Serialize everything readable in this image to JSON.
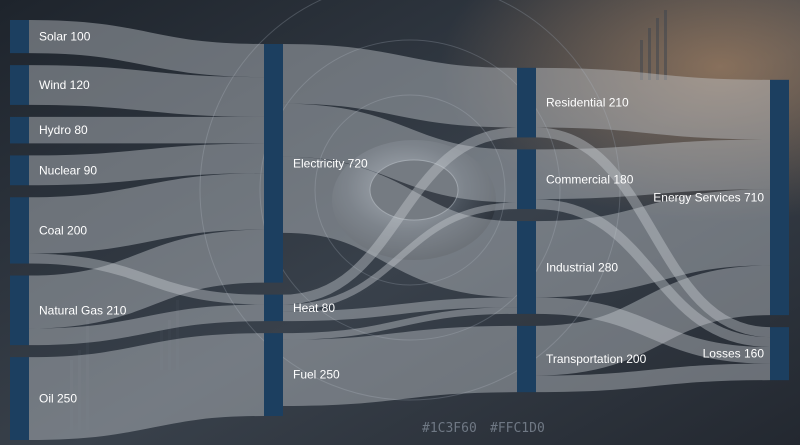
{
  "chart_data": {
    "type": "sankey",
    "columns": [
      [
        "Solar",
        "Wind",
        "Hydro",
        "Nuclear",
        "Coal",
        "Natural Gas",
        "Oil"
      ],
      [
        "Electricity",
        "Heat",
        "Fuel"
      ],
      [
        "Residential",
        "Commercial",
        "Industrial",
        "Transportation"
      ],
      [
        "Energy Services",
        "Losses"
      ]
    ],
    "nodes": [
      {
        "name": "Solar",
        "value": 100,
        "label": "Solar 100"
      },
      {
        "name": "Wind",
        "value": 120,
        "label": "Wind 120"
      },
      {
        "name": "Hydro",
        "value": 80,
        "label": "Hydro 80"
      },
      {
        "name": "Nuclear",
        "value": 90,
        "label": "Nuclear 90"
      },
      {
        "name": "Coal",
        "value": 200,
        "label": "Coal 200"
      },
      {
        "name": "Natural Gas",
        "value": 210,
        "label": "Natural Gas 210"
      },
      {
        "name": "Oil",
        "value": 250,
        "label": "Oil 250"
      },
      {
        "name": "Electricity",
        "value": 720,
        "label": "Electricity 720"
      },
      {
        "name": "Heat",
        "value": 80,
        "label": "Heat 80"
      },
      {
        "name": "Fuel",
        "value": 250,
        "label": "Fuel 250"
      },
      {
        "name": "Residential",
        "value": 210,
        "label": "Residential 210"
      },
      {
        "name": "Commercial",
        "value": 180,
        "label": "Commercial 180"
      },
      {
        "name": "Industrial",
        "value": 280,
        "label": "Industrial 280"
      },
      {
        "name": "Transportation",
        "value": 200,
        "label": "Transportation 200"
      },
      {
        "name": "Energy Services",
        "value": 710,
        "label": "Energy Services 710"
      },
      {
        "name": "Losses",
        "value": 160,
        "label": "Losses 160"
      }
    ],
    "links": [
      {
        "source": "Solar",
        "target": "Electricity",
        "value": 100
      },
      {
        "source": "Wind",
        "target": "Electricity",
        "value": 120
      },
      {
        "source": "Hydro",
        "target": "Electricity",
        "value": 80
      },
      {
        "source": "Nuclear",
        "target": "Electricity",
        "value": 90
      },
      {
        "source": "Coal",
        "target": "Electricity",
        "value": 170
      },
      {
        "source": "Coal",
        "target": "Heat",
        "value": 30
      },
      {
        "source": "Natural Gas",
        "target": "Electricity",
        "value": 160
      },
      {
        "source": "Natural Gas",
        "target": "Heat",
        "value": 50
      },
      {
        "source": "Oil",
        "target": "Fuel",
        "value": 250
      },
      {
        "source": "Electricity",
        "target": "Residential",
        "value": 180
      },
      {
        "source": "Electricity",
        "target": "Commercial",
        "value": 160
      },
      {
        "source": "Electricity",
        "target": "Industrial",
        "value": 230
      },
      {
        "source": "Heat",
        "target": "Residential",
        "value": 30
      },
      {
        "source": "Heat",
        "target": "Commercial",
        "value": 20
      },
      {
        "source": "Heat",
        "target": "Industrial",
        "value": 30
      },
      {
        "source": "Fuel",
        "target": "Industrial",
        "value": 20
      },
      {
        "source": "Fuel",
        "target": "Transportation",
        "value": 200
      },
      {
        "source": "Residential",
        "target": "Energy Services",
        "value": 180
      },
      {
        "source": "Residential",
        "target": "Losses",
        "value": 30
      },
      {
        "source": "Commercial",
        "target": "Energy Services",
        "value": 150
      },
      {
        "source": "Commercial",
        "target": "Losses",
        "value": 30
      },
      {
        "source": "Industrial",
        "target": "Energy Services",
        "value": 230
      },
      {
        "source": "Industrial",
        "target": "Losses",
        "value": 50
      },
      {
        "source": "Transportation",
        "target": "Energy Services",
        "value": 150
      },
      {
        "source": "Transportation",
        "target": "Losses",
        "value": 50
      }
    ],
    "colors": {
      "node": "#1C3F60",
      "link": "#C7CCD2",
      "label": "#FFFFFF"
    }
  },
  "watermark": {
    "left": "#1C3F60",
    "right": "#FFC1D0"
  }
}
